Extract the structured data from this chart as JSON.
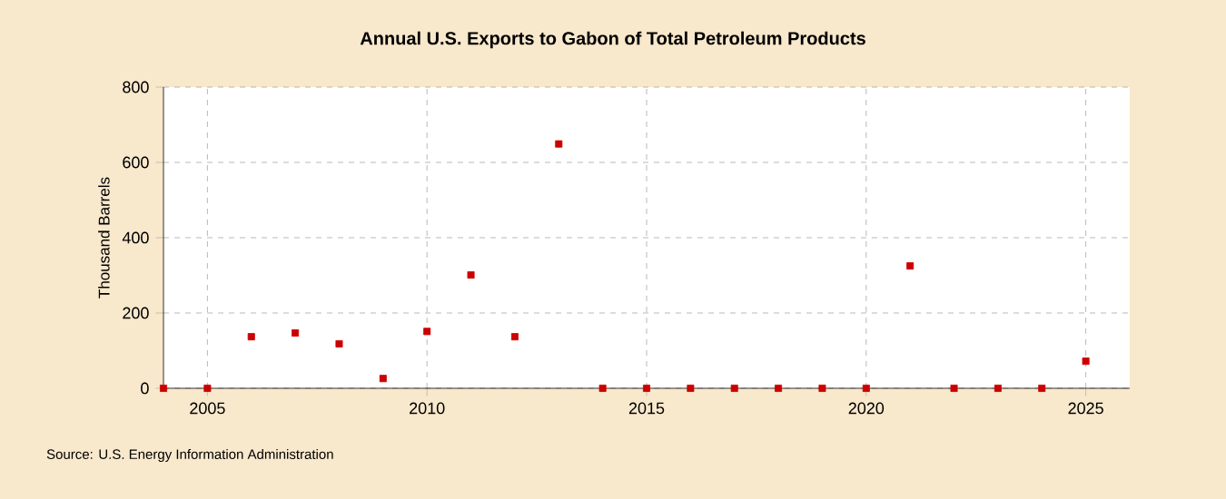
{
  "chart_data": {
    "type": "scatter",
    "title": "Annual U.S. Exports to Gabon of Total Petroleum Products",
    "ylabel": "Thousand Barrels",
    "x": [
      2004,
      2005,
      2006,
      2007,
      2008,
      2009,
      2010,
      2011,
      2012,
      2013,
      2014,
      2015,
      2016,
      2017,
      2018,
      2019,
      2020,
      2021,
      2022,
      2023,
      2024,
      2025
    ],
    "values": [
      0,
      0,
      137,
      147,
      118,
      26,
      151,
      301,
      137,
      649,
      0,
      0,
      0,
      0,
      0,
      0,
      0,
      325,
      0,
      0,
      0,
      72
    ],
    "color": "#cc0000",
    "marker": "square",
    "grid": true,
    "xlim": [
      2004,
      2026
    ],
    "xticks": [
      2005,
      2010,
      2015,
      2020,
      2025
    ],
    "ylim": [
      0,
      800
    ],
    "yticks": [
      0,
      200,
      400,
      600,
      800
    ],
    "annotations": [
      "Source: U.S. Energy Information Administration"
    ]
  }
}
